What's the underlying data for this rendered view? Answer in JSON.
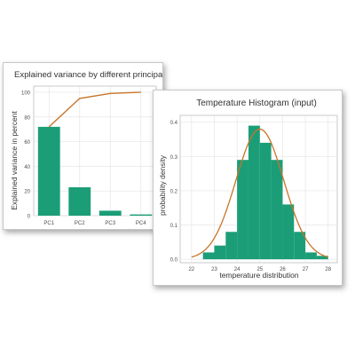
{
  "colors": {
    "bar": "#1b9e77",
    "line": "#c8742a",
    "grid": "#e6e6e6"
  },
  "chart_data": [
    {
      "type": "bar",
      "title": "Explained variance by different principal components",
      "xlabel": "",
      "ylabel": "Explained variance in percent",
      "categories": [
        "PC1",
        "PC2",
        "PC3",
        "PC4"
      ],
      "values": [
        72,
        23,
        4,
        1
      ],
      "cumulative": [
        72,
        95,
        99,
        100
      ],
      "ylim": [
        0,
        105
      ],
      "yticks": [
        0,
        20,
        40,
        60,
        80,
        100
      ],
      "grid": true,
      "legend": "none"
    },
    {
      "type": "bar",
      "title": "Temperature Histogram (input)",
      "xlabel": "temperature distribution",
      "ylabel": "probability density",
      "bins": [
        {
          "x0": 22.0,
          "x1": 22.5,
          "value": 0.0
        },
        {
          "x0": 22.5,
          "x1": 23.0,
          "value": 0.02
        },
        {
          "x0": 23.0,
          "x1": 23.5,
          "value": 0.04
        },
        {
          "x0": 23.5,
          "x1": 24.0,
          "value": 0.08
        },
        {
          "x0": 24.0,
          "x1": 24.5,
          "value": 0.29
        },
        {
          "x0": 24.5,
          "x1": 25.0,
          "value": 0.39
        },
        {
          "x0": 25.0,
          "x1": 25.5,
          "value": 0.34
        },
        {
          "x0": 25.5,
          "x1": 26.0,
          "value": 0.29
        },
        {
          "x0": 26.0,
          "x1": 26.5,
          "value": 0.16
        },
        {
          "x0": 26.5,
          "x1": 27.0,
          "value": 0.08
        },
        {
          "x0": 27.0,
          "x1": 27.5,
          "value": 0.02
        },
        {
          "x0": 27.5,
          "x1": 28.0,
          "value": 0.01
        }
      ],
      "density_curve": {
        "mean": 25.0,
        "sd": 1.05
      },
      "xlim": [
        21.5,
        28.4
      ],
      "ylim": [
        -0.01,
        0.42
      ],
      "xticks": [
        22,
        23,
        24,
        25,
        26,
        27,
        28
      ],
      "yticks": [
        0.0,
        0.1,
        0.2,
        0.3,
        0.4
      ],
      "grid": true,
      "legend": "none"
    }
  ]
}
